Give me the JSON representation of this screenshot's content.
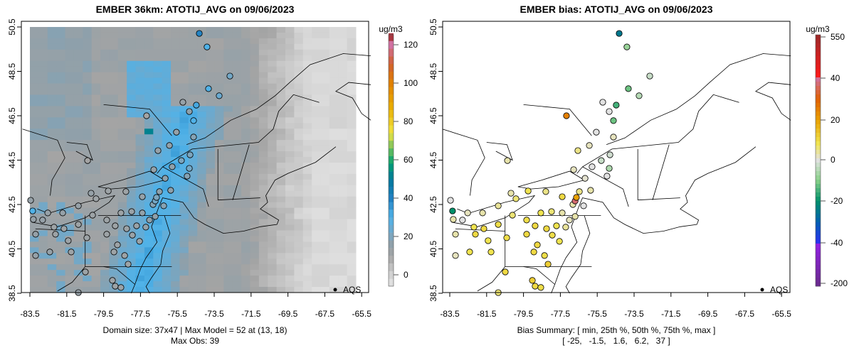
{
  "chart_data": [
    {
      "type": "heatmap",
      "title": "EMBER 36km: ATOTIJ_AVG on 09/06/2023",
      "xticks": [
        "-83.5",
        "-81.5",
        "-79.5",
        "-77.5",
        "-75.5",
        "-73.5",
        "-71.5",
        "-69.5",
        "-67.5",
        "-65.5"
      ],
      "yticks": [
        "38.5",
        "40.5",
        "42.5",
        "44.5",
        "46.5",
        "48.5",
        "50.5"
      ],
      "colorbar": {
        "unit": "ug/m3",
        "ticks": [
          "0",
          "20",
          "40",
          "60",
          "80",
          "100",
          "120"
        ],
        "range": [
          -6,
          125
        ]
      },
      "legend": "AQS",
      "footer": [
        "Domain size: 37x47 | Max Model = 52 at (13, 18)",
        "Max Obs: 39"
      ],
      "grid": {
        "cols": 37,
        "rows": 47,
        "max": 52
      }
    },
    {
      "type": "scatter",
      "title": "EMBER bias: ATOTIJ_AVG on 09/06/2023",
      "xticks": [
        "-83.5",
        "-81.5",
        "-79.5",
        "-77.5",
        "-75.5",
        "-73.5",
        "-71.5",
        "-69.5",
        "-67.5",
        "-65.5"
      ],
      "yticks": [
        "38.5",
        "40.5",
        "42.5",
        "44.5",
        "46.5",
        "48.5",
        "50.5"
      ],
      "colorbar": {
        "unit": "ug/m3",
        "ticks": [
          "550",
          "40",
          "20",
          "0",
          "-20",
          "-40",
          "-200"
        ]
      },
      "legend": "AQS",
      "footer": [
        "Bias Summary: [ min, 25th %, 50th %, 75th %, max ]",
        "[ -25,   -1.5,   1.6,   6.2,   37 ]"
      ]
    }
  ],
  "stations": [
    [
      -74.31,
      50.21,
      39,
      -25
    ],
    [
      -73.89,
      49.6,
      30,
      -8
    ],
    [
      -72.65,
      48.29,
      22,
      -3
    ],
    [
      -73.81,
      47.72,
      30,
      -12
    ],
    [
      -73.23,
      47.4,
      24,
      -5
    ],
    [
      -74.47,
      46.98,
      32,
      -15
    ],
    [
      -74.62,
      46.28,
      30,
      -12
    ],
    [
      -74.85,
      46.69,
      16,
      0
    ],
    [
      -77.17,
      46.5,
      10,
      25
    ],
    [
      -75.2,
      47.11,
      14,
      0
    ],
    [
      -75.55,
      45.76,
      14,
      0
    ],
    [
      -74.62,
      45.54,
      18,
      2
    ],
    [
      -76.55,
      44.93,
      14,
      5
    ],
    [
      -75.93,
      45.16,
      15,
      2
    ],
    [
      -74.81,
      44.74,
      20,
      -2
    ],
    [
      -75.28,
      44.48,
      20,
      -3
    ],
    [
      -74.85,
      44.13,
      22,
      -6
    ],
    [
      -75.78,
      44.2,
      16,
      0
    ],
    [
      -76.78,
      44.07,
      14,
      2
    ],
    [
      -80.37,
      44.48,
      10,
      3
    ],
    [
      -76.16,
      43.68,
      16,
      1
    ],
    [
      -74.97,
      43.78,
      18,
      0
    ],
    [
      -75.86,
      43.14,
      16,
      3
    ],
    [
      -79.25,
      43.11,
      12,
      8
    ],
    [
      -78.29,
      43.08,
      12,
      5
    ],
    [
      -77.4,
      42.85,
      14,
      10
    ],
    [
      -76.82,
      42.5,
      18,
      3
    ],
    [
      -76.7,
      42.66,
      22,
      37
    ],
    [
      -76.63,
      42.82,
      20,
      20
    ],
    [
      -83.35,
      42.21,
      30,
      -20
    ],
    [
      -83.46,
      42.69,
      14,
      0
    ],
    [
      -82.53,
      42.12,
      14,
      2
    ],
    [
      -83.31,
      41.83,
      14,
      3
    ],
    [
      -82.19,
      41.48,
      12,
      8
    ],
    [
      -82.11,
      41.16,
      12,
      10
    ],
    [
      -81.65,
      41.41,
      12,
      10
    ],
    [
      -81.42,
      40.87,
      12,
      8
    ],
    [
      -80.87,
      41.6,
      12,
      9
    ],
    [
      -80.1,
      42.02,
      12,
      6
    ],
    [
      -79.33,
      41.8,
      12,
      9
    ],
    [
      -78.87,
      41.54,
      12,
      10
    ],
    [
      -78.25,
      41.41,
      12,
      10
    ],
    [
      -77.94,
      41.12,
      13,
      9
    ],
    [
      -77.71,
      41.54,
      13,
      8
    ],
    [
      -78.56,
      42.12,
      12,
      8
    ],
    [
      -77.98,
      42.18,
      13,
      6
    ],
    [
      -77.4,
      42.12,
      15,
      3
    ],
    [
      -77.01,
      41.8,
      16,
      2
    ],
    [
      -79.33,
      41.16,
      12,
      10
    ],
    [
      -78.75,
      40.68,
      12,
      10
    ],
    [
      -78.94,
      40.36,
      12,
      10
    ],
    [
      -78.36,
      40.2,
      12,
      9
    ],
    [
      -78.17,
      39.81,
      12,
      12
    ],
    [
      -80.41,
      41.0,
      12,
      9
    ],
    [
      -81.26,
      40.36,
      12,
      8
    ],
    [
      -82.42,
      40.36,
      14,
      8
    ],
    [
      -80.49,
      39.46,
      12,
      10
    ],
    [
      -80.87,
      38.53,
      14,
      6
    ],
    [
      -79.02,
      39.08,
      12,
      12
    ],
    [
      -78.87,
      38.82,
      12,
      10
    ],
    [
      -78.56,
      38.76,
      13,
      9
    ],
    [
      -83.19,
      41.16,
      14,
      3
    ],
    [
      -82.81,
      41.8,
      14,
      0
    ],
    [
      -81.72,
      42.12,
      14,
      3
    ],
    [
      -80.87,
      42.44,
      14,
      4
    ],
    [
      -80.18,
      43.01,
      14,
      3
    ],
    [
      -79.91,
      42.76,
      12,
      6
    ],
    [
      -83.19,
      40.2,
      14,
      2
    ],
    [
      -76.7,
      41.96,
      16,
      3
    ],
    [
      -77.21,
      41.48,
      15,
      4
    ],
    [
      -77.55,
      40.84,
      13,
      8
    ],
    [
      -76.47,
      43.08,
      16,
      5
    ],
    [
      -76.24,
      42.44,
      18,
      0
    ]
  ]
}
